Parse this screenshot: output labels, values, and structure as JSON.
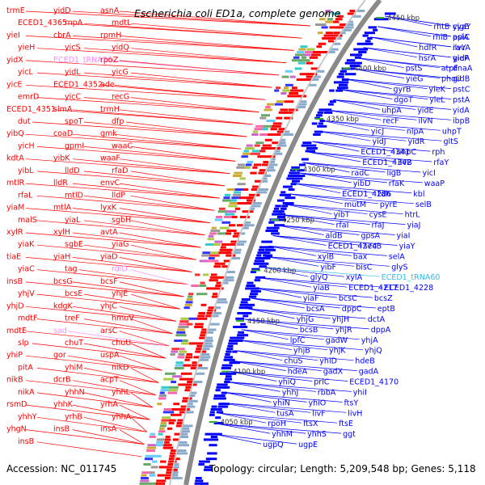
{
  "title": "Escherichia coli ED1a, complete genome",
  "footer": {
    "accession": "Accession: NC_011745",
    "topology": "Topology: circular; Length: 5,209,548 bp; Genes: 5,118"
  },
  "colors": {
    "reverse_strand": "#ff0000",
    "forward_strand": "#0000ff",
    "rna": "#ff88ff",
    "special": "#33bbee",
    "backbone": "#888888",
    "tick": "#33aa33"
  },
  "ticks": [
    "4450 kbp",
    "4400 kbp",
    "4350 kbp",
    "4300 kbp",
    "4250 kbp",
    "4200 kbp",
    "4150 kbp",
    "4100 kbp",
    "4050 kbp"
  ],
  "left_labels": [
    {
      "t": "trmE",
      "c": "red"
    },
    {
      "t": "yidD",
      "c": "red"
    },
    {
      "t": "asnA",
      "c": "red"
    },
    {
      "t": "ECED1_4365",
      "c": "red"
    },
    {
      "t": "rnpA",
      "c": "red"
    },
    {
      "t": "mdtL",
      "c": "red"
    },
    {
      "t": "yieI",
      "c": "red"
    },
    {
      "t": "cbrA",
      "c": "red"
    },
    {
      "t": "rpmH",
      "c": "red"
    },
    {
      "t": "yieH",
      "c": "red"
    },
    {
      "t": "yicS",
      "c": "red"
    },
    {
      "t": "yidQ",
      "c": "red"
    },
    {
      "t": "yidX",
      "c": "red"
    },
    {
      "t": "ECED1_tRNA36",
      "c": "pink"
    },
    {
      "t": "rpoZ",
      "c": "red"
    },
    {
      "t": "yicL",
      "c": "red"
    },
    {
      "t": "yidL",
      "c": "red"
    },
    {
      "t": "yicG",
      "c": "red"
    },
    {
      "t": "yicE",
      "c": "red"
    },
    {
      "t": "ECED1_4352",
      "c": "red"
    },
    {
      "t": "ade",
      "c": "red"
    },
    {
      "t": "emrD",
      "c": "red"
    },
    {
      "t": "yicC",
      "c": "red"
    },
    {
      "t": "recG",
      "c": "red"
    },
    {
      "t": "ECED1_4351",
      "c": "red"
    },
    {
      "t": "slmA",
      "c": "red"
    },
    {
      "t": "trmH",
      "c": "red"
    },
    {
      "t": "dut",
      "c": "red"
    },
    {
      "t": "spoT",
      "c": "red"
    },
    {
      "t": "dfp",
      "c": "red"
    },
    {
      "t": "yibQ",
      "c": "red"
    },
    {
      "t": "coaD",
      "c": "red"
    },
    {
      "t": "gmk",
      "c": "red"
    },
    {
      "t": "yicH",
      "c": "red"
    },
    {
      "t": "gpmI",
      "c": "red"
    },
    {
      "t": "waaC",
      "c": "red"
    },
    {
      "t": "kdtA",
      "c": "red"
    },
    {
      "t": "yibK",
      "c": "red"
    },
    {
      "t": "waaF",
      "c": "red"
    },
    {
      "t": "yibL",
      "c": "red"
    },
    {
      "t": "lldD",
      "c": "red"
    },
    {
      "t": "rfaD",
      "c": "red"
    },
    {
      "t": "mtlR",
      "c": "red"
    },
    {
      "t": "lldR",
      "c": "red"
    },
    {
      "t": "envC",
      "c": "red"
    },
    {
      "t": "rfaL",
      "c": "red"
    },
    {
      "t": "mtlD",
      "c": "red"
    },
    {
      "t": "lldP",
      "c": "red"
    },
    {
      "t": "yiaM",
      "c": "red"
    },
    {
      "t": "mtlA",
      "c": "red"
    },
    {
      "t": "lyxK",
      "c": "red"
    },
    {
      "t": "malS",
      "c": "red"
    },
    {
      "t": "yiaL",
      "c": "red"
    },
    {
      "t": "sgbH",
      "c": "red"
    },
    {
      "t": "xylR",
      "c": "red"
    },
    {
      "t": "xylH",
      "c": "red"
    },
    {
      "t": "avtA",
      "c": "red"
    },
    {
      "t": "yiaK",
      "c": "red"
    },
    {
      "t": "sgbE",
      "c": "red"
    },
    {
      "t": "yiaG",
      "c": "red"
    },
    {
      "t": "tiaE",
      "c": "red"
    },
    {
      "t": "yiaH",
      "c": "red"
    },
    {
      "t": "yiaD",
      "c": "red"
    },
    {
      "t": "yiaC",
      "c": "red"
    },
    {
      "t": "tag",
      "c": "red"
    },
    {
      "t": "rdlD",
      "c": "pink"
    },
    {
      "t": "insB",
      "c": "red"
    },
    {
      "t": "bcsG",
      "c": "red"
    },
    {
      "t": "bcsF",
      "c": "red"
    },
    {
      "t": "yhjV",
      "c": "red"
    },
    {
      "t": "bcsE",
      "c": "red"
    },
    {
      "t": "yhjE",
      "c": "red"
    },
    {
      "t": "yhjD",
      "c": "red"
    },
    {
      "t": "kdgK",
      "c": "red"
    },
    {
      "t": "yhjC",
      "c": "red"
    },
    {
      "t": "mdtF",
      "c": "red"
    },
    {
      "t": "treF",
      "c": "red"
    },
    {
      "t": "hmuV",
      "c": "red"
    },
    {
      "t": "mdtE",
      "c": "red"
    },
    {
      "t": "sad",
      "c": "pink"
    },
    {
      "t": "arsC",
      "c": "red"
    },
    {
      "t": "slp",
      "c": "red"
    },
    {
      "t": "chuT",
      "c": "red"
    },
    {
      "t": "chuU",
      "c": "red"
    },
    {
      "t": "yhiP",
      "c": "red"
    },
    {
      "t": "gor",
      "c": "red"
    },
    {
      "t": "uspA",
      "c": "red"
    },
    {
      "t": "pitA",
      "c": "red"
    },
    {
      "t": "yhiM",
      "c": "red"
    },
    {
      "t": "nikD",
      "c": "red"
    },
    {
      "t": "nikB",
      "c": "red"
    },
    {
      "t": "dcrB",
      "c": "red"
    },
    {
      "t": "acpT",
      "c": "red"
    },
    {
      "t": "nikA",
      "c": "red"
    },
    {
      "t": "yhhN",
      "c": "red"
    },
    {
      "t": "yhhL",
      "c": "red"
    },
    {
      "t": "rsmD",
      "c": "red"
    },
    {
      "t": "yhhK",
      "c": "red"
    },
    {
      "t": "yrhA",
      "c": "red"
    },
    {
      "t": "yhhY",
      "c": "red"
    },
    {
      "t": "yrhB",
      "c": "red"
    },
    {
      "t": "yhhA",
      "c": "red"
    },
    {
      "t": "yhgN",
      "c": "red"
    },
    {
      "t": "insB",
      "c": "red"
    },
    {
      "t": "insA",
      "c": "red"
    },
    {
      "t": "insB",
      "c": "red"
    }
  ],
  "right_labels": [
    {
      "t": "rhtB",
      "c": "blue"
    },
    {
      "t": "cyaY",
      "c": "blue"
    },
    {
      "t": "yigE",
      "c": "blue"
    },
    {
      "t": "rhlB",
      "c": "blue"
    },
    {
      "t": "aslA",
      "c": "blue"
    },
    {
      "t": "ppiC",
      "c": "blue"
    },
    {
      "t": "hdfR",
      "c": "blue"
    },
    {
      "t": "ilvY",
      "c": "blue"
    },
    {
      "t": "ravA",
      "c": "blue"
    },
    {
      "t": "hsrA",
      "c": "blue"
    },
    {
      "t": "gidA",
      "c": "blue"
    },
    {
      "t": "yieP",
      "c": "blue"
    },
    {
      "t": "pstS",
      "c": "blue"
    },
    {
      "t": "atpF",
      "c": "blue"
    },
    {
      "t": "dnaA",
      "c": "blue"
    },
    {
      "t": "yieG",
      "c": "blue"
    },
    {
      "t": "phoU",
      "c": "blue"
    },
    {
      "t": "gidB",
      "c": "blue"
    },
    {
      "t": "gyrB",
      "c": "blue"
    },
    {
      "t": "yieK",
      "c": "blue"
    },
    {
      "t": "pstC",
      "c": "blue"
    },
    {
      "t": "dgoT",
      "c": "blue"
    },
    {
      "t": "yieL",
      "c": "blue"
    },
    {
      "t": "pstA",
      "c": "blue"
    },
    {
      "t": "uhpA",
      "c": "blue"
    },
    {
      "t": "yidE",
      "c": "blue"
    },
    {
      "t": "yidA",
      "c": "blue"
    },
    {
      "t": "recF",
      "c": "blue"
    },
    {
      "t": "ilvN",
      "c": "blue"
    },
    {
      "t": "ibpB",
      "c": "blue"
    },
    {
      "t": "yicJ",
      "c": "blue"
    },
    {
      "t": "nlpA",
      "c": "blue"
    },
    {
      "t": "uhpT",
      "c": "blue"
    },
    {
      "t": "yidJ",
      "c": "blue"
    },
    {
      "t": "yidR",
      "c": "blue"
    },
    {
      "t": "gltS",
      "c": "blue"
    },
    {
      "t": "ECED1_4341",
      "c": "blue"
    },
    {
      "t": "uhpC",
      "c": "blue"
    },
    {
      "t": "rph",
      "c": "blue"
    },
    {
      "t": "ECED1_4342",
      "c": "blue"
    },
    {
      "t": "ilvB",
      "c": "blue"
    },
    {
      "t": "rfaY",
      "c": "blue"
    },
    {
      "t": "radC",
      "c": "blue"
    },
    {
      "t": "ligB",
      "c": "blue"
    },
    {
      "t": "yicI",
      "c": "blue"
    },
    {
      "t": "yibD",
      "c": "blue"
    },
    {
      "t": "rfaK",
      "c": "blue"
    },
    {
      "t": "waaP",
      "c": "blue"
    },
    {
      "t": "ECED1_4286",
      "c": "blue"
    },
    {
      "t": "tdh",
      "c": "blue"
    },
    {
      "t": "kbl",
      "c": "blue"
    },
    {
      "t": "mutM",
      "c": "blue"
    },
    {
      "t": "pyrE",
      "c": "blue"
    },
    {
      "t": "selB",
      "c": "blue"
    },
    {
      "t": "yibT",
      "c": "blue"
    },
    {
      "t": "cysE",
      "c": "blue"
    },
    {
      "t": "htrL",
      "c": "blue"
    },
    {
      "t": "rfaI",
      "c": "blue"
    },
    {
      "t": "rfaJ",
      "c": "blue"
    },
    {
      "t": "yiaJ",
      "c": "blue"
    },
    {
      "t": "aldB",
      "c": "blue"
    },
    {
      "t": "gpsA",
      "c": "blue"
    },
    {
      "t": "yiaI",
      "c": "blue"
    },
    {
      "t": "ECED1_4274",
      "c": "blue"
    },
    {
      "t": "secB",
      "c": "blue"
    },
    {
      "t": "yiaY",
      "c": "blue"
    },
    {
      "t": "xylB",
      "c": "blue"
    },
    {
      "t": "bax",
      "c": "blue"
    },
    {
      "t": "selA",
      "c": "blue"
    },
    {
      "t": "yibF",
      "c": "blue"
    },
    {
      "t": "bisC",
      "c": "blue"
    },
    {
      "t": "glyS",
      "c": "blue"
    },
    {
      "t": "glyQ",
      "c": "blue"
    },
    {
      "t": "xylA",
      "c": "blue"
    },
    {
      "t": "ECED1_tRNA60",
      "c": "cyan"
    },
    {
      "t": "yiaB",
      "c": "blue"
    },
    {
      "t": "ECED1_4217",
      "c": "blue"
    },
    {
      "t": "ECED1_4228",
      "c": "blue"
    },
    {
      "t": "yiaF",
      "c": "blue"
    },
    {
      "t": "bcsC",
      "c": "blue"
    },
    {
      "t": "bcsZ",
      "c": "blue"
    },
    {
      "t": "bcsA",
      "c": "blue"
    },
    {
      "t": "dppC",
      "c": "blue"
    },
    {
      "t": "eptB",
      "c": "blue"
    },
    {
      "t": "yhjG",
      "c": "blue"
    },
    {
      "t": "yhjH",
      "c": "blue"
    },
    {
      "t": "dctA",
      "c": "blue"
    },
    {
      "t": "bcsB",
      "c": "blue"
    },
    {
      "t": "yhjR",
      "c": "blue"
    },
    {
      "t": "dppA",
      "c": "blue"
    },
    {
      "t": "lpfC",
      "c": "blue"
    },
    {
      "t": "gadW",
      "c": "blue"
    },
    {
      "t": "yhjA",
      "c": "blue"
    },
    {
      "t": "yhjB",
      "c": "blue"
    },
    {
      "t": "yhjK",
      "c": "blue"
    },
    {
      "t": "yhjQ",
      "c": "blue"
    },
    {
      "t": "chuS",
      "c": "blue"
    },
    {
      "t": "yhiD",
      "c": "blue"
    },
    {
      "t": "hdeB",
      "c": "blue"
    },
    {
      "t": "hdeA",
      "c": "blue"
    },
    {
      "t": "gadX",
      "c": "blue"
    },
    {
      "t": "gadA",
      "c": "blue"
    },
    {
      "t": "yhiQ",
      "c": "blue"
    },
    {
      "t": "prlC",
      "c": "blue"
    },
    {
      "t": "ECED1_4170",
      "c": "blue"
    },
    {
      "t": "yhhJ",
      "c": "blue"
    },
    {
      "t": "rbbA",
      "c": "blue"
    },
    {
      "t": "yhiI",
      "c": "blue"
    },
    {
      "t": "yhiN",
      "c": "blue"
    },
    {
      "t": "yhiO",
      "c": "blue"
    },
    {
      "t": "ftsY",
      "c": "blue"
    },
    {
      "t": "tusA",
      "c": "blue"
    },
    {
      "t": "livF",
      "c": "blue"
    },
    {
      "t": "livH",
      "c": "blue"
    },
    {
      "t": "rpoH",
      "c": "blue"
    },
    {
      "t": "ftsX",
      "c": "blue"
    },
    {
      "t": "ftsE",
      "c": "blue"
    },
    {
      "t": "yhhM",
      "c": "blue"
    },
    {
      "t": "yhhS",
      "c": "blue"
    },
    {
      "t": "ggt",
      "c": "blue"
    },
    {
      "t": "ugpQ",
      "c": "blue"
    },
    {
      "t": "ugpE",
      "c": "blue"
    }
  ]
}
